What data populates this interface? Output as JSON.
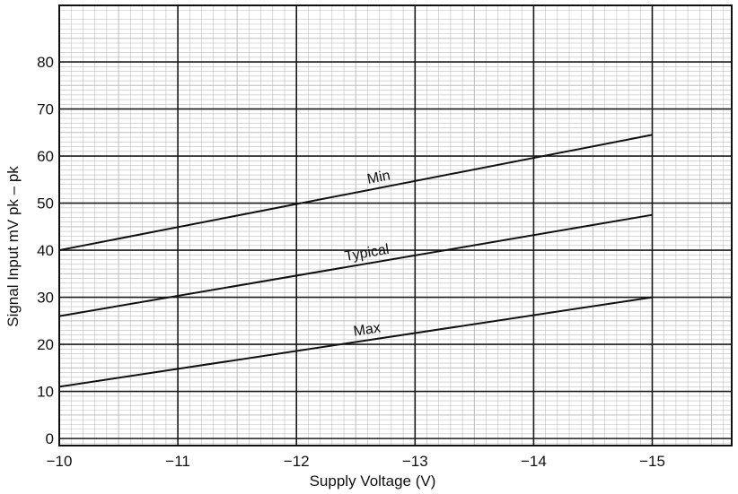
{
  "chart_data": {
    "type": "line",
    "title": "",
    "xlabel": "Supply Voltage (V)",
    "ylabel": "Signal Input mV pk – pk",
    "xlim": [
      -10,
      -15.67
    ],
    "ylim": [
      -1.5,
      92
    ],
    "x_ticks": [
      "−10",
      "−11",
      "−12",
      "−13",
      "−14",
      "−15"
    ],
    "y_ticks": [
      "0",
      "10",
      "20",
      "30",
      "40",
      "50",
      "60",
      "70",
      "80"
    ],
    "grid": true,
    "series": [
      {
        "name": "Min",
        "x": [
          -10,
          -15
        ],
        "y": [
          40,
          64.5
        ]
      },
      {
        "name": "Typical",
        "x": [
          -10,
          -15
        ],
        "y": [
          26,
          47.5
        ]
      },
      {
        "name": "Max",
        "x": [
          -10,
          -15
        ],
        "y": [
          11,
          30
        ]
      }
    ]
  },
  "colors": {
    "grid_minor": "#bdbdbd",
    "grid_major": "#1a1a1a",
    "line": "#111111",
    "paper": "#ffffff"
  }
}
